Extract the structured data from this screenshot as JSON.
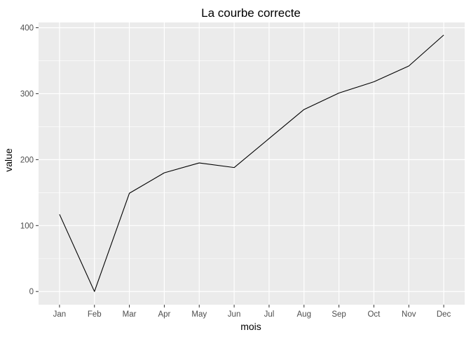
{
  "chart_data": {
    "type": "line",
    "title": "La courbe correcte",
    "xlabel": "mois",
    "ylabel": "value",
    "categories": [
      "Jan",
      "Feb",
      "Mar",
      "Apr",
      "May",
      "Jun",
      "Jul",
      "Aug",
      "Sep",
      "Oct",
      "Nov",
      "Dec"
    ],
    "series": [
      {
        "values": [
          117,
          0,
          149,
          180,
          195,
          188,
          232,
          276,
          301,
          318,
          342,
          389
        ]
      }
    ],
    "ylim": [
      -20,
      408
    ],
    "yticks": [
      0,
      100,
      200,
      300,
      400
    ],
    "grid": true,
    "legend": "none",
    "colors": {
      "panel_background": "#ebebeb",
      "grid_line": "#ffffff",
      "line": "#000000",
      "tick_label": "#4d4d4d",
      "axis_title": "#000000"
    }
  }
}
